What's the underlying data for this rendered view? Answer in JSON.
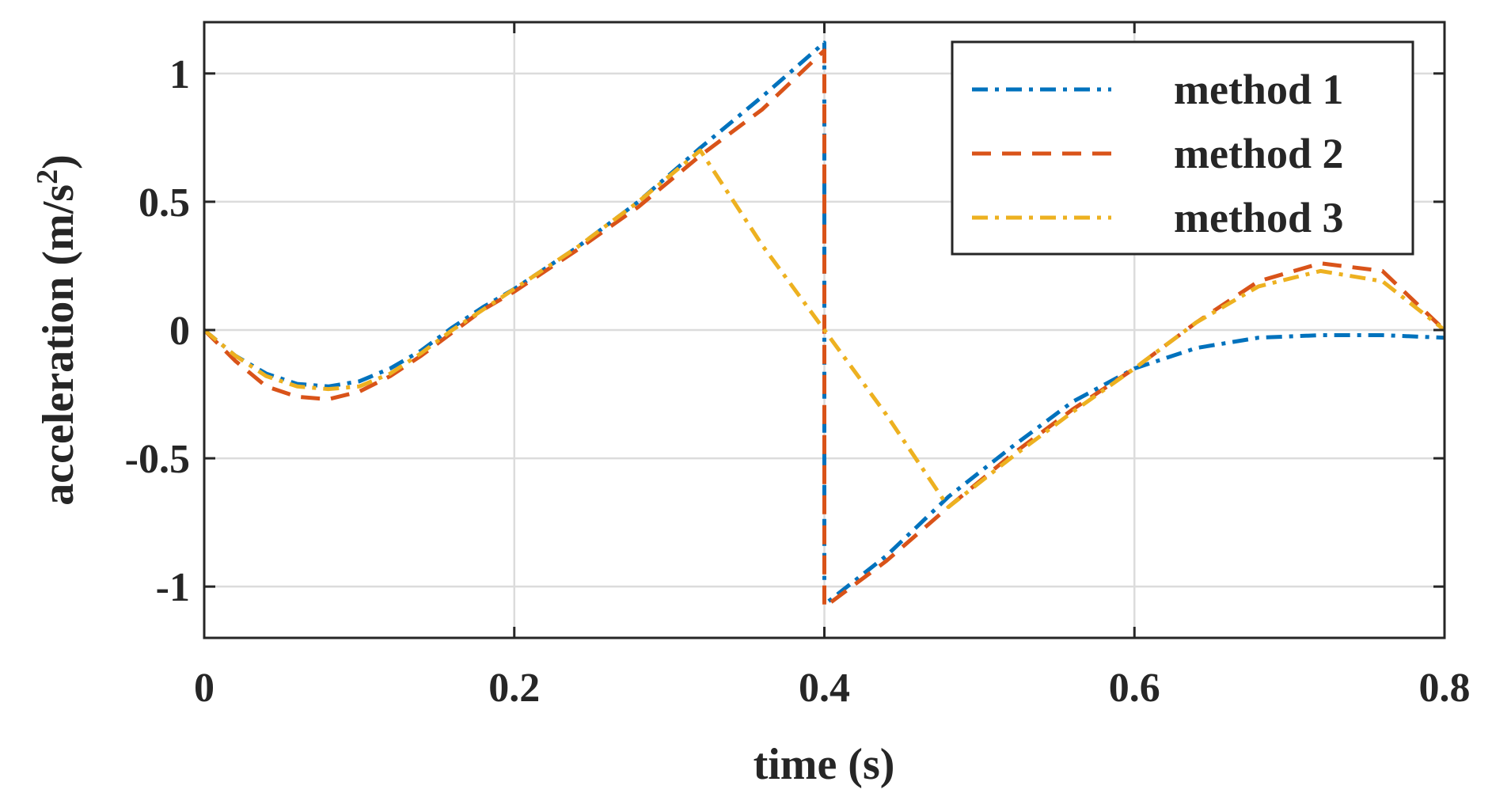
{
  "chart_data": {
    "type": "line",
    "xlabel": "time (s)",
    "ylabel_main": "acceleration (m/s",
    "ylabel_sup": "2",
    "ylabel_close": ")",
    "xlim": [
      0,
      0.8
    ],
    "ylim": [
      -1.2,
      1.2
    ],
    "xticks": [
      0,
      0.2,
      0.4,
      0.6,
      0.8
    ],
    "xtick_labels": [
      "0",
      "0.2",
      "0.4",
      "0.6",
      "0.8"
    ],
    "yticks": [
      -1,
      -0.5,
      0,
      0.5,
      1
    ],
    "ytick_labels": [
      "-1",
      "-0.5",
      "0",
      "0.5",
      "1"
    ],
    "grid": true,
    "legend_position": "top-right",
    "series": [
      {
        "name": "method 1",
        "color": "#0072BD",
        "style": "dash-dot",
        "x": [
          0,
          0.02,
          0.04,
          0.06,
          0.08,
          0.1,
          0.12,
          0.14,
          0.16,
          0.18,
          0.2,
          0.24,
          0.28,
          0.32,
          0.36,
          0.4,
          0.4,
          0.44,
          0.48,
          0.52,
          0.56,
          0.6,
          0.64,
          0.68,
          0.72,
          0.76,
          0.8
        ],
        "y": [
          0,
          -0.1,
          -0.17,
          -0.21,
          -0.22,
          -0.2,
          -0.15,
          -0.08,
          0.01,
          0.09,
          0.16,
          0.32,
          0.5,
          0.71,
          0.91,
          1.12,
          -1.07,
          -0.88,
          -0.65,
          -0.46,
          -0.28,
          -0.15,
          -0.07,
          -0.03,
          -0.02,
          -0.02,
          -0.03
        ]
      },
      {
        "name": "method 2",
        "color": "#D95319",
        "style": "dashed",
        "x": [
          0,
          0.02,
          0.04,
          0.06,
          0.08,
          0.1,
          0.12,
          0.14,
          0.16,
          0.18,
          0.2,
          0.24,
          0.28,
          0.32,
          0.36,
          0.4,
          0.4,
          0.44,
          0.48,
          0.52,
          0.56,
          0.6,
          0.64,
          0.68,
          0.72,
          0.76,
          0.8
        ],
        "y": [
          0,
          -0.12,
          -0.22,
          -0.26,
          -0.27,
          -0.24,
          -0.18,
          -0.1,
          -0.01,
          0.08,
          0.15,
          0.31,
          0.48,
          0.68,
          0.86,
          1.09,
          -1.08,
          -0.9,
          -0.69,
          -0.49,
          -0.31,
          -0.15,
          0.03,
          0.19,
          0.26,
          0.23,
          0.0
        ]
      },
      {
        "name": "method 3",
        "color": "#EDB120",
        "style": "dash-dot",
        "x": [
          0,
          0.02,
          0.04,
          0.06,
          0.08,
          0.1,
          0.12,
          0.14,
          0.16,
          0.18,
          0.2,
          0.24,
          0.28,
          0.32,
          0.36,
          0.4,
          0.44,
          0.48,
          0.52,
          0.56,
          0.6,
          0.64,
          0.68,
          0.72,
          0.76,
          0.8
        ],
        "y": [
          0,
          -0.1,
          -0.18,
          -0.22,
          -0.23,
          -0.22,
          -0.17,
          -0.09,
          0.0,
          0.08,
          0.16,
          0.32,
          0.5,
          0.7,
          0.33,
          0.0,
          -0.33,
          -0.69,
          -0.5,
          -0.32,
          -0.15,
          0.03,
          0.17,
          0.23,
          0.19,
          0.0
        ]
      }
    ]
  }
}
